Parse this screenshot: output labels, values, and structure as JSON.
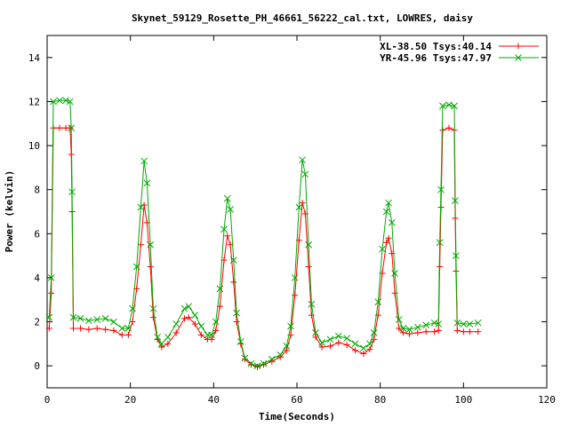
{
  "chart_data": {
    "type": "line",
    "title": "Skynet_59129_Rosette_PH_46661_56222_cal.txt, LOWRES, daisy",
    "xlabel": "Time(Seconds)",
    "ylabel": "Power (kelvin)",
    "xlim": [
      0,
      120
    ],
    "ylim": [
      -1,
      15
    ],
    "xticks": [
      0,
      20,
      40,
      60,
      80,
      100,
      120
    ],
    "yticks": [
      0,
      2,
      4,
      6,
      8,
      10,
      12,
      14
    ],
    "grid": false,
    "legend_position": "top-right",
    "series": [
      {
        "name": "XL-38.50 Tsys:40.14",
        "color": "#ff0000",
        "marker": "plus",
        "points": [
          [
            0.5,
            1.7
          ],
          [
            1,
            3.3
          ],
          [
            1.5,
            10.8
          ],
          [
            3,
            10.8
          ],
          [
            4.5,
            10.8
          ],
          [
            5.5,
            10.8
          ],
          [
            5.8,
            9.6
          ],
          [
            6,
            7.0
          ],
          [
            6.3,
            1.7
          ],
          [
            8,
            1.7
          ],
          [
            10,
            1.65
          ],
          [
            12,
            1.7
          ],
          [
            14,
            1.65
          ],
          [
            16,
            1.6
          ],
          [
            18,
            1.4
          ],
          [
            19.5,
            1.4
          ],
          [
            20.5,
            2.0
          ],
          [
            21.5,
            3.5
          ],
          [
            22.5,
            5.5
          ],
          [
            23.3,
            7.3
          ],
          [
            24,
            6.5
          ],
          [
            24.8,
            4.5
          ],
          [
            25.5,
            2.2
          ],
          [
            26.5,
            1.2
          ],
          [
            27.5,
            0.85
          ],
          [
            29,
            1.0
          ],
          [
            31,
            1.5
          ],
          [
            33,
            2.15
          ],
          [
            34,
            2.2
          ],
          [
            35.5,
            1.9
          ],
          [
            37,
            1.4
          ],
          [
            38.5,
            1.2
          ],
          [
            39.5,
            1.2
          ],
          [
            40.5,
            1.6
          ],
          [
            41.5,
            2.7
          ],
          [
            42.5,
            4.8
          ],
          [
            43.3,
            5.9
          ],
          [
            44,
            5.5
          ],
          [
            44.8,
            3.8
          ],
          [
            45.5,
            2.0
          ],
          [
            46.5,
            1.0
          ],
          [
            47.5,
            0.3
          ],
          [
            49,
            0.05
          ],
          [
            50.5,
            -0.05
          ],
          [
            52,
            0.05
          ],
          [
            54,
            0.2
          ],
          [
            56,
            0.4
          ],
          [
            57.5,
            0.7
          ],
          [
            58.5,
            1.4
          ],
          [
            59.5,
            3.2
          ],
          [
            60.5,
            5.7
          ],
          [
            61.3,
            7.4
          ],
          [
            62,
            6.9
          ],
          [
            62.8,
            4.5
          ],
          [
            63.5,
            2.3
          ],
          [
            64.5,
            1.3
          ],
          [
            66,
            0.85
          ],
          [
            68,
            0.9
          ],
          [
            70,
            1.05
          ],
          [
            72,
            0.95
          ],
          [
            74,
            0.7
          ],
          [
            76,
            0.55
          ],
          [
            77.5,
            0.75
          ],
          [
            78.5,
            1.2
          ],
          [
            79.5,
            2.3
          ],
          [
            80.5,
            4.2
          ],
          [
            81.5,
            5.6
          ],
          [
            82,
            5.8
          ],
          [
            82.8,
            5.1
          ],
          [
            83.5,
            3.3
          ],
          [
            84.5,
            1.7
          ],
          [
            85.5,
            1.5
          ],
          [
            87,
            1.45
          ],
          [
            89,
            1.5
          ],
          [
            91,
            1.55
          ],
          [
            93,
            1.55
          ],
          [
            94,
            1.6
          ],
          [
            94.3,
            4.5
          ],
          [
            94.6,
            7.2
          ],
          [
            95,
            10.7
          ],
          [
            96.5,
            10.8
          ],
          [
            97.8,
            10.7
          ],
          [
            98,
            6.7
          ],
          [
            98.2,
            4.3
          ],
          [
            98.5,
            1.6
          ],
          [
            100,
            1.55
          ],
          [
            101.5,
            1.55
          ],
          [
            103.5,
            1.55
          ]
        ]
      },
      {
        "name": "YR-45.96 Tsys:47.97",
        "color": "#00aa00",
        "marker": "cross",
        "points": [
          [
            0.5,
            2.2
          ],
          [
            1,
            4.0
          ],
          [
            1.5,
            12.0
          ],
          [
            3,
            12.05
          ],
          [
            4.5,
            12.05
          ],
          [
            5.5,
            12.0
          ],
          [
            5.8,
            10.8
          ],
          [
            6,
            7.9
          ],
          [
            6.3,
            2.2
          ],
          [
            8,
            2.15
          ],
          [
            10,
            2.05
          ],
          [
            12,
            2.1
          ],
          [
            14,
            2.15
          ],
          [
            16,
            2.0
          ],
          [
            18,
            1.7
          ],
          [
            19.5,
            1.7
          ],
          [
            20.5,
            2.6
          ],
          [
            21.5,
            4.5
          ],
          [
            22.5,
            7.2
          ],
          [
            23.3,
            9.3
          ],
          [
            24,
            8.3
          ],
          [
            24.8,
            5.5
          ],
          [
            25.5,
            2.6
          ],
          [
            26.5,
            1.3
          ],
          [
            27.5,
            1.0
          ],
          [
            29,
            1.3
          ],
          [
            31,
            1.9
          ],
          [
            33,
            2.6
          ],
          [
            34,
            2.7
          ],
          [
            35.5,
            2.3
          ],
          [
            37,
            1.8
          ],
          [
            38.5,
            1.4
          ],
          [
            39.5,
            1.4
          ],
          [
            40.5,
            2.0
          ],
          [
            41.5,
            3.5
          ],
          [
            42.5,
            6.2
          ],
          [
            43.3,
            7.6
          ],
          [
            44,
            7.1
          ],
          [
            44.8,
            4.8
          ],
          [
            45.5,
            2.4
          ],
          [
            46.5,
            1.1
          ],
          [
            47.5,
            0.35
          ],
          [
            49,
            0.1
          ],
          [
            50.5,
            0.0
          ],
          [
            52,
            0.1
          ],
          [
            54,
            0.3
          ],
          [
            56,
            0.5
          ],
          [
            57.5,
            0.9
          ],
          [
            58.5,
            1.8
          ],
          [
            59.5,
            4.0
          ],
          [
            60.5,
            7.2
          ],
          [
            61.3,
            9.35
          ],
          [
            62,
            8.7
          ],
          [
            62.8,
            5.5
          ],
          [
            63.5,
            2.8
          ],
          [
            64.5,
            1.5
          ],
          [
            66,
            1.05
          ],
          [
            68,
            1.2
          ],
          [
            70,
            1.35
          ],
          [
            72,
            1.25
          ],
          [
            74,
            1.0
          ],
          [
            76,
            0.8
          ],
          [
            77.5,
            1.0
          ],
          [
            78.5,
            1.5
          ],
          [
            79.5,
            2.9
          ],
          [
            80.5,
            5.3
          ],
          [
            81.5,
            7.0
          ],
          [
            82,
            7.4
          ],
          [
            82.8,
            6.5
          ],
          [
            83.5,
            4.2
          ],
          [
            84.5,
            2.1
          ],
          [
            85.5,
            1.7
          ],
          [
            87,
            1.65
          ],
          [
            89,
            1.75
          ],
          [
            91,
            1.85
          ],
          [
            93,
            1.95
          ],
          [
            94,
            1.9
          ],
          [
            94.3,
            5.6
          ],
          [
            94.6,
            8.0
          ],
          [
            95,
            11.8
          ],
          [
            96.5,
            11.85
          ],
          [
            97.8,
            11.8
          ],
          [
            98,
            7.5
          ],
          [
            98.2,
            5.0
          ],
          [
            98.5,
            1.95
          ],
          [
            100,
            1.9
          ],
          [
            101.5,
            1.9
          ],
          [
            103.5,
            1.95
          ]
        ]
      }
    ]
  }
}
